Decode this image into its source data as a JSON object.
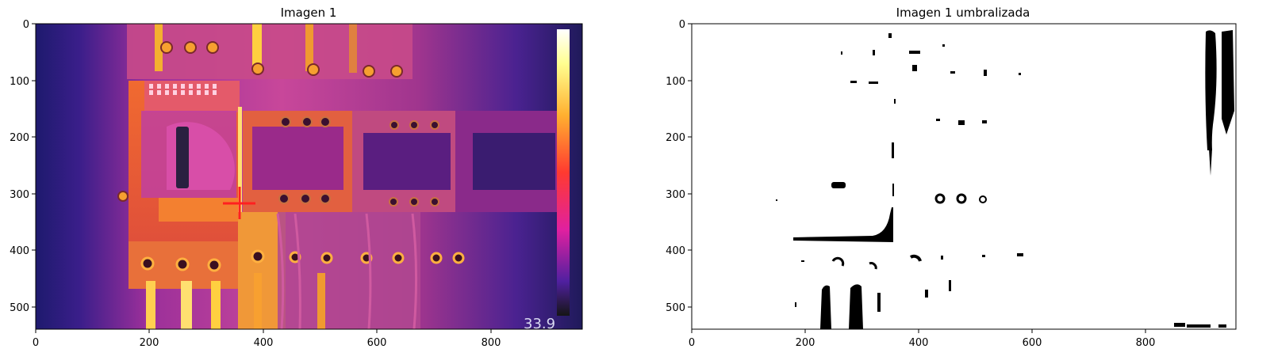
{
  "figure": {
    "left_panel": {
      "title": "Imagen 1",
      "xticks": [
        "0",
        "200",
        "400",
        "600",
        "800"
      ],
      "yticks": [
        "0",
        "100",
        "200",
        "300",
        "400",
        "500"
      ],
      "overlay_reading": "33.9"
    },
    "right_panel": {
      "title": "Imagen 1 umbralizada",
      "xticks": [
        "0",
        "200",
        "400",
        "600",
        "800"
      ],
      "yticks": [
        "0",
        "100",
        "200",
        "300",
        "400",
        "500"
      ]
    }
  },
  "colors": {
    "thermal_dark": "#2a1a7a",
    "thermal_purple": "#8a2aa0",
    "thermal_orange": "#f07a20",
    "thermal_yellow": "#ffd040",
    "crosshair": "#ff2020",
    "mask_black": "#000000",
    "mask_white": "#ffffff"
  },
  "images": {
    "left": "thermal-image-electrical-panel",
    "right": "binary-threshold-mask"
  }
}
